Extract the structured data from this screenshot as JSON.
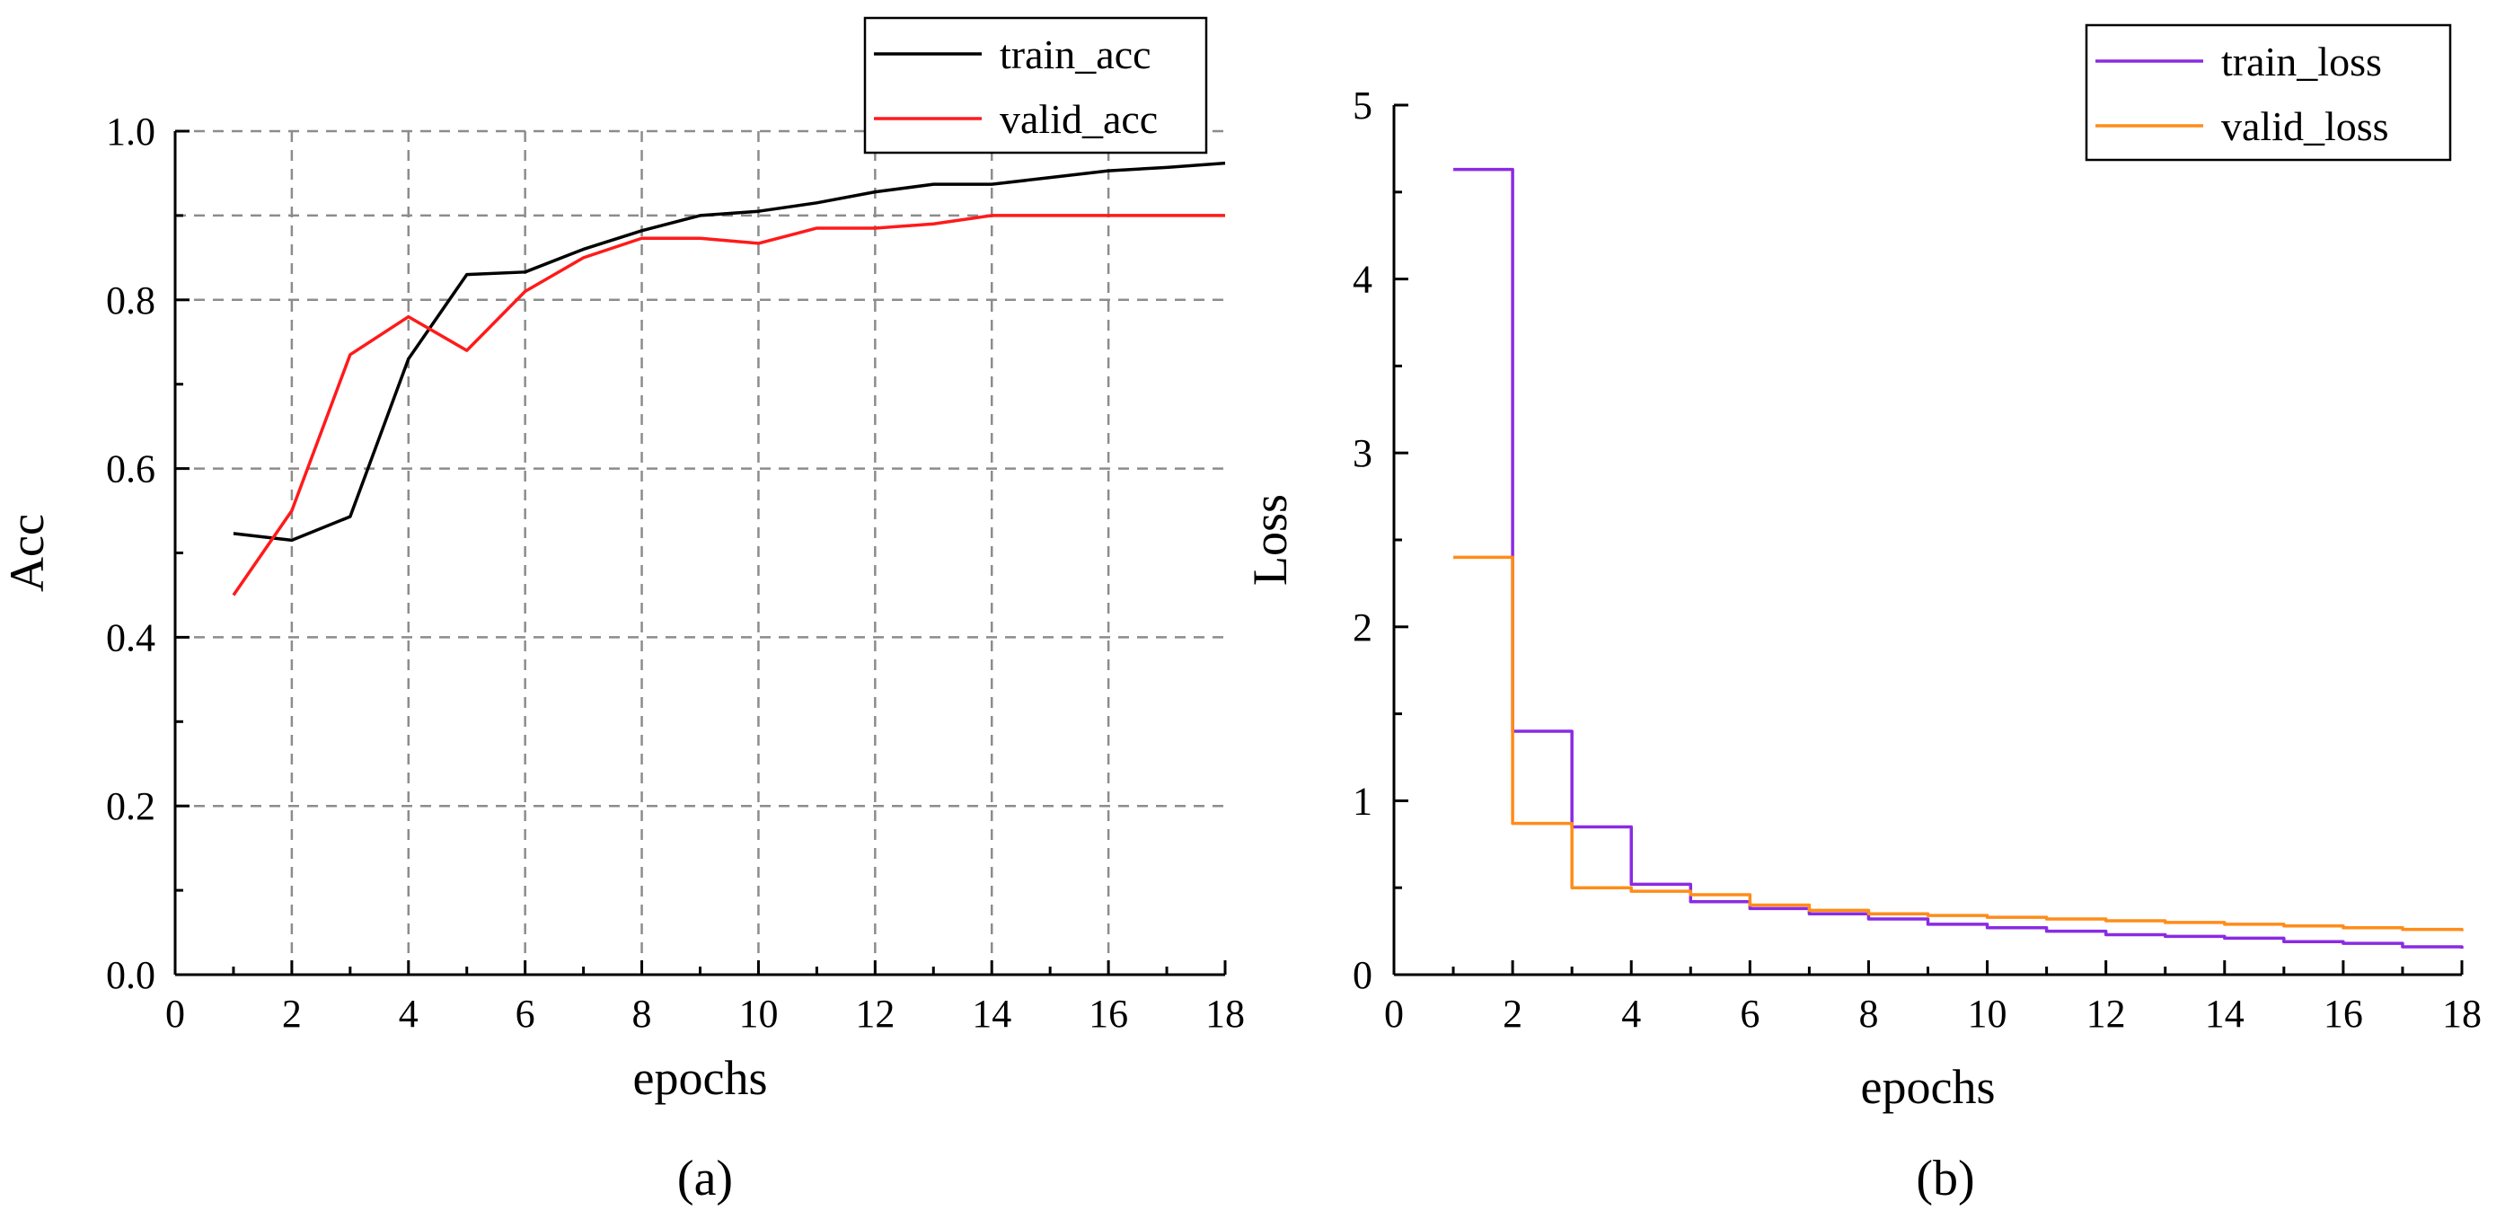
{
  "chart_data": [
    {
      "type": "line",
      "caption": "(a)",
      "xlabel": "epochs",
      "ylabel": "Acc",
      "xlim": [
        0,
        18
      ],
      "ylim": [
        0,
        1.0
      ],
      "xticks": [
        "0",
        "2",
        "4",
        "6",
        "8",
        "10",
        "12",
        "14",
        "16",
        "18"
      ],
      "yticks": [
        "0.0",
        "0.2",
        "0.4",
        "0.6",
        "0.8",
        "1.0"
      ],
      "grid": true,
      "legend": "top-right",
      "x": [
        1,
        2,
        3,
        4,
        5,
        6,
        7,
        8,
        9,
        10,
        11,
        12,
        13,
        14,
        15,
        16,
        17,
        18
      ],
      "series": [
        {
          "name": "train_acc",
          "color": "#000000",
          "values": [
            0.523,
            0.515,
            0.543,
            0.73,
            0.83,
            0.833,
            0.86,
            0.882,
            0.9,
            0.905,
            0.915,
            0.928,
            0.937,
            0.937,
            0.945,
            0.953,
            0.957,
            0.962
          ]
        },
        {
          "name": "valid_acc",
          "color": "#ff1a1a",
          "values": [
            0.45,
            0.55,
            0.735,
            0.78,
            0.74,
            0.81,
            0.85,
            0.873,
            0.873,
            0.867,
            0.885,
            0.885,
            0.89,
            0.9,
            0.9,
            0.9,
            0.9,
            0.9
          ]
        }
      ]
    },
    {
      "type": "line",
      "step": true,
      "caption": "(b)",
      "xlabel": "epochs",
      "ylabel": "Loss",
      "xlim": [
        0,
        18
      ],
      "ylim": [
        0,
        5
      ],
      "xticks": [
        "0",
        "2",
        "4",
        "6",
        "8",
        "10",
        "12",
        "14",
        "16",
        "18"
      ],
      "yticks": [
        "0",
        "1",
        "2",
        "3",
        "4",
        "5"
      ],
      "grid": false,
      "legend": "top-right",
      "x": [
        1,
        2,
        3,
        4,
        5,
        6,
        7,
        8,
        9,
        10,
        11,
        12,
        13,
        14,
        15,
        16,
        17,
        18
      ],
      "series": [
        {
          "name": "train_loss",
          "color": "#8a2be2",
          "values": [
            4.63,
            1.4,
            0.85,
            0.52,
            0.42,
            0.38,
            0.35,
            0.32,
            0.29,
            0.27,
            0.25,
            0.23,
            0.22,
            0.21,
            0.19,
            0.18,
            0.16,
            0.15
          ]
        },
        {
          "name": "valid_loss",
          "color": "#ff8c1a",
          "values": [
            2.4,
            0.87,
            0.5,
            0.48,
            0.46,
            0.4,
            0.37,
            0.35,
            0.34,
            0.33,
            0.32,
            0.31,
            0.3,
            0.29,
            0.28,
            0.27,
            0.26,
            0.25
          ]
        }
      ]
    }
  ]
}
